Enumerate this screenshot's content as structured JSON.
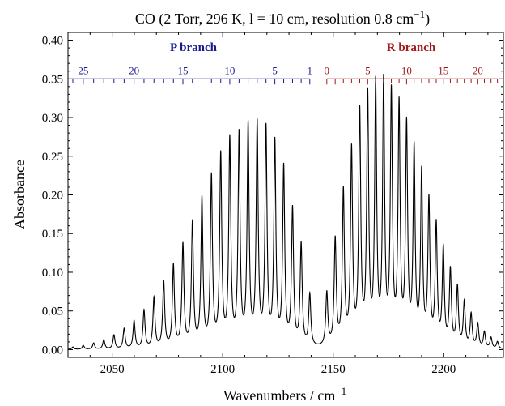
{
  "chart_data": {
    "type": "line",
    "title_main": "CO (2 Torr, 296 K, l = 10 cm, resolution 0.8 cm",
    "title_sup": "−1",
    "title_close": ")",
    "xlabel_main": "Wavenumbers / cm",
    "xlabel_sup": "−1",
    "ylabel": "Absorbance",
    "xlim": [
      2030,
      2227
    ],
    "ylim": [
      -0.01,
      0.41
    ],
    "x_ticks": [
      2050,
      2100,
      2150,
      2200
    ],
    "x_tick_labels": [
      "2050",
      "2100",
      "2150",
      "2200"
    ],
    "y_ticks": [
      0.0,
      0.05,
      0.1,
      0.15,
      0.2,
      0.25,
      0.3,
      0.35,
      0.4
    ],
    "y_tick_labels": [
      "0.00",
      "0.05",
      "0.10",
      "0.15",
      "0.20",
      "0.25",
      "0.30",
      "0.35",
      "0.40"
    ],
    "grid": false,
    "line_color": "#000000",
    "line_width_cm1": 0.55,
    "p_branch": {
      "label": "P branch",
      "color": "#1a1a8c",
      "j_numbers_shown": [
        "25",
        "20",
        "15",
        "10",
        "5",
        "1"
      ],
      "j_numbers_values": [
        25,
        20,
        15,
        10,
        5,
        1
      ],
      "j_range": [
        1,
        27
      ],
      "lines": [
        {
          "j": 1,
          "x": 2139.4,
          "y": 0.067
        },
        {
          "j": 2,
          "x": 2135.5,
          "y": 0.131
        },
        {
          "j": 3,
          "x": 2131.6,
          "y": 0.176
        },
        {
          "j": 4,
          "x": 2127.6,
          "y": 0.229
        },
        {
          "j": 5,
          "x": 2123.6,
          "y": 0.261
        },
        {
          "j": 6,
          "x": 2119.6,
          "y": 0.278
        },
        {
          "j": 7,
          "x": 2115.6,
          "y": 0.284
        },
        {
          "j": 8,
          "x": 2111.5,
          "y": 0.282
        },
        {
          "j": 9,
          "x": 2107.4,
          "y": 0.271
        },
        {
          "j": 10,
          "x": 2103.2,
          "y": 0.265
        },
        {
          "j": 11,
          "x": 2099.1,
          "y": 0.245
        },
        {
          "j": 12,
          "x": 2094.9,
          "y": 0.218
        },
        {
          "j": 13,
          "x": 2090.6,
          "y": 0.19
        },
        {
          "j": 14,
          "x": 2086.3,
          "y": 0.16
        },
        {
          "j": 15,
          "x": 2082.0,
          "y": 0.132
        },
        {
          "j": 16,
          "x": 2077.7,
          "y": 0.106
        },
        {
          "j": 17,
          "x": 2073.3,
          "y": 0.085
        },
        {
          "j": 18,
          "x": 2068.9,
          "y": 0.065
        },
        {
          "j": 19,
          "x": 2064.4,
          "y": 0.049
        },
        {
          "j": 20,
          "x": 2059.9,
          "y": 0.036
        },
        {
          "j": 21,
          "x": 2055.4,
          "y": 0.026
        },
        {
          "j": 22,
          "x": 2050.8,
          "y": 0.018
        },
        {
          "j": 23,
          "x": 2046.2,
          "y": 0.012
        },
        {
          "j": 24,
          "x": 2041.6,
          "y": 0.008
        },
        {
          "j": 25,
          "x": 2036.9,
          "y": 0.005
        },
        {
          "j": 26,
          "x": 2032.2,
          "y": 0.003
        }
      ]
    },
    "r_branch": {
      "label": "R branch",
      "color": "#a01818",
      "j_numbers_shown": [
        "0",
        "5",
        "10",
        "15",
        "20"
      ],
      "j_numbers_values": [
        0,
        5,
        10,
        15,
        20
      ],
      "j_range": [
        0,
        24
      ],
      "lines": [
        {
          "j": 0,
          "x": 2147.1,
          "y": 0.069
        },
        {
          "j": 1,
          "x": 2150.9,
          "y": 0.137
        },
        {
          "j": 2,
          "x": 2154.6,
          "y": 0.198
        },
        {
          "j": 3,
          "x": 2158.3,
          "y": 0.25
        },
        {
          "j": 4,
          "x": 2162.0,
          "y": 0.298
        },
        {
          "j": 5,
          "x": 2165.6,
          "y": 0.318
        },
        {
          "j": 6,
          "x": 2169.2,
          "y": 0.332
        },
        {
          "j": 7,
          "x": 2172.8,
          "y": 0.334
        },
        {
          "j": 8,
          "x": 2176.3,
          "y": 0.32
        },
        {
          "j": 9,
          "x": 2179.8,
          "y": 0.305
        },
        {
          "j": 10,
          "x": 2183.2,
          "y": 0.28
        },
        {
          "j": 11,
          "x": 2186.6,
          "y": 0.25
        },
        {
          "j": 12,
          "x": 2190.0,
          "y": 0.22
        },
        {
          "j": 13,
          "x": 2193.3,
          "y": 0.185
        },
        {
          "j": 14,
          "x": 2196.6,
          "y": 0.155
        },
        {
          "j": 15,
          "x": 2199.8,
          "y": 0.125
        },
        {
          "j": 16,
          "x": 2203.0,
          "y": 0.098
        },
        {
          "j": 17,
          "x": 2206.2,
          "y": 0.077
        },
        {
          "j": 18,
          "x": 2209.3,
          "y": 0.058
        },
        {
          "j": 19,
          "x": 2212.4,
          "y": 0.043
        },
        {
          "j": 20,
          "x": 2215.4,
          "y": 0.031
        },
        {
          "j": 21,
          "x": 2218.4,
          "y": 0.021
        },
        {
          "j": 22,
          "x": 2221.4,
          "y": 0.014
        },
        {
          "j": 23,
          "x": 2224.3,
          "y": 0.009
        }
      ]
    }
  }
}
